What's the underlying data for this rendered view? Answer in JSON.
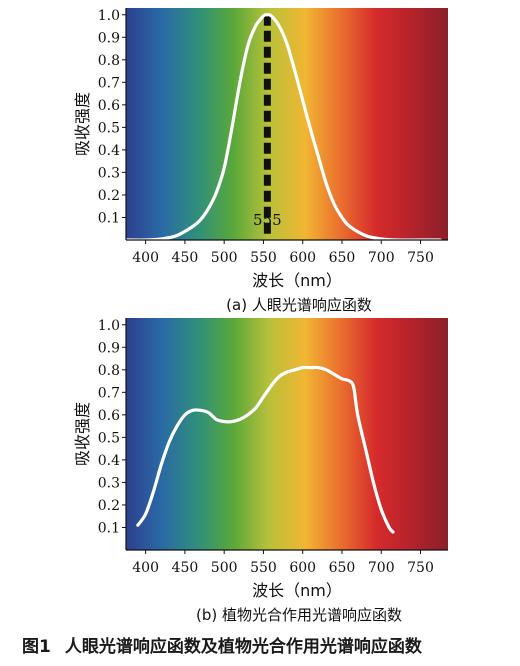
{
  "figure_caption": {
    "number": "图1",
    "text": "人眼光谱响应函数及植物光合作用光谱响应函数"
  },
  "colors": {
    "spectrum_stops": [
      "#2d3f8e",
      "#2a6aa6",
      "#2f8f7a",
      "#5aa83a",
      "#b9c13a",
      "#f0b632",
      "#ea6f2e",
      "#d62a2c",
      "#b3232a",
      "#8a1f2a"
    ],
    "curve": "#ffffff",
    "marker_555": "#111111",
    "axis": "#111111"
  },
  "chart_data": [
    {
      "type": "line",
      "caption": "(a) 人眼光谱响应函数",
      "xlabel": "波长（nm）",
      "ylabel": "吸收强度",
      "xlim": [
        375,
        785
      ],
      "ylim": [
        0,
        1.03
      ],
      "x_ticks": [
        400,
        450,
        500,
        550,
        600,
        650,
        700,
        750
      ],
      "y_ticks": [
        0.1,
        0.2,
        0.3,
        0.4,
        0.5,
        0.6,
        0.7,
        0.8,
        0.9,
        1.0
      ],
      "y_tick_labels": [
        "0.1",
        "0.2",
        "0.3",
        "0.4",
        "0.5",
        "0.6",
        "0.7",
        "0.8",
        "0.9",
        "1.0"
      ],
      "marker": {
        "x": 555,
        "label": "555",
        "style": "dashed"
      },
      "series": [
        {
          "x": [
            375,
            400,
            420,
            440,
            460,
            470,
            480,
            490,
            500,
            510,
            520,
            530,
            540,
            550,
            555,
            560,
            570,
            580,
            590,
            600,
            610,
            620,
            630,
            640,
            650,
            660,
            680,
            700,
            720,
            750,
            775
          ],
          "values": [
            0.0,
            0.0,
            0.005,
            0.02,
            0.06,
            0.09,
            0.14,
            0.21,
            0.32,
            0.5,
            0.7,
            0.86,
            0.95,
            0.995,
            1.0,
            0.995,
            0.95,
            0.87,
            0.75,
            0.62,
            0.49,
            0.37,
            0.25,
            0.16,
            0.1,
            0.06,
            0.02,
            0.005,
            0.0,
            0.0,
            0.0
          ]
        }
      ]
    },
    {
      "type": "line",
      "caption": "(b) 植物光合作用光谱响应函数",
      "xlabel": "波长（nm）",
      "ylabel": "吸收强度",
      "xlim": [
        375,
        785
      ],
      "ylim": [
        0,
        1.03
      ],
      "x_ticks": [
        400,
        450,
        500,
        550,
        600,
        650,
        700,
        750
      ],
      "y_ticks": [
        0.1,
        0.2,
        0.3,
        0.4,
        0.5,
        0.6,
        0.7,
        0.8,
        0.9,
        1.0
      ],
      "y_tick_labels": [
        "0.1",
        "0.2",
        "0.3",
        "0.4",
        "0.5",
        "0.6",
        "0.7",
        "0.8",
        "0.9",
        "1.0"
      ],
      "series": [
        {
          "x": [
            390,
            400,
            410,
            420,
            430,
            440,
            450,
            460,
            470,
            480,
            490,
            500,
            510,
            520,
            530,
            540,
            550,
            560,
            570,
            580,
            590,
            600,
            610,
            620,
            630,
            640,
            650,
            660,
            665,
            670,
            680,
            690,
            700,
            710,
            715
          ],
          "values": [
            0.11,
            0.16,
            0.26,
            0.38,
            0.48,
            0.55,
            0.6,
            0.62,
            0.62,
            0.61,
            0.58,
            0.57,
            0.57,
            0.58,
            0.6,
            0.63,
            0.68,
            0.73,
            0.77,
            0.79,
            0.8,
            0.81,
            0.81,
            0.81,
            0.8,
            0.78,
            0.76,
            0.75,
            0.72,
            0.6,
            0.45,
            0.3,
            0.18,
            0.1,
            0.08
          ]
        }
      ]
    }
  ]
}
